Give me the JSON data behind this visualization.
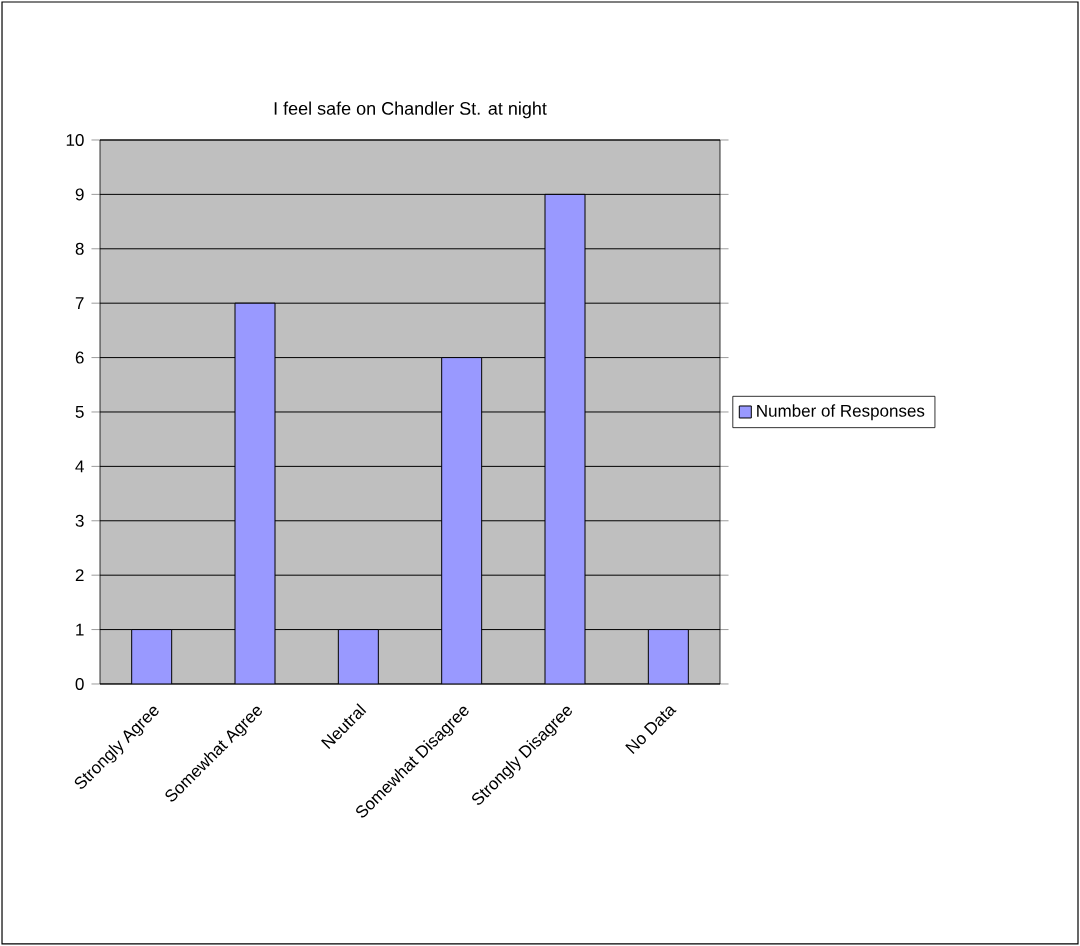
{
  "chart_data": {
    "type": "bar",
    "title": "I feel safe on Chandler St. at night",
    "categories": [
      "Strongly Agree",
      "Somewhat Agree",
      "Neutral",
      "Somewhat Disagree",
      "Strongly Disagree",
      "No Data"
    ],
    "series": [
      {
        "name": "Number of Responses",
        "color": "#9999ff",
        "values": [
          1,
          7,
          1,
          6,
          9,
          1
        ]
      }
    ],
    "ylim": [
      0,
      10
    ],
    "yticks": [
      0,
      1,
      2,
      3,
      4,
      5,
      6,
      7,
      8,
      9,
      10
    ],
    "grid": "y",
    "legend": "right"
  }
}
